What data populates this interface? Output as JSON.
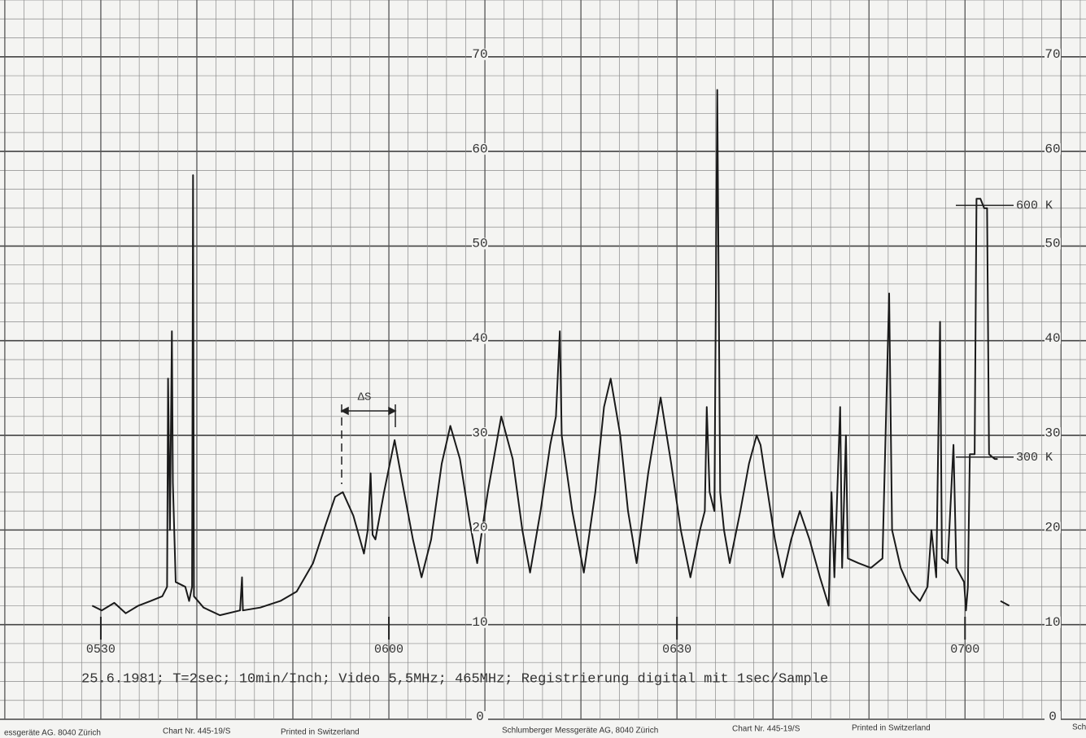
{
  "chart_data": {
    "type": "line",
    "caption": "25.6.1981; T=2sec; 10min/Inch; Video 5,5MHz; 465MHz; Registrierung digital mit 1sec/Sample",
    "footer": [
      "essgeräte AG. 8040 Zürich",
      "Chart Nr. 445-19/S",
      "Printed in Switzerland",
      "Schlumberger Messgeräte AG, 8040 Zürich",
      "Chart Nr. 445-19/S",
      "Printed in Switzerland",
      "Sch"
    ],
    "delta_label": "ΔS",
    "annotations": [
      {
        "text": "600 K",
        "y": 54.3
      },
      {
        "text": "300 K",
        "y": 27.7
      }
    ],
    "xlim": [
      319.5,
      432.6
    ],
    "ylim": [
      0,
      76
    ],
    "xticks": [
      {
        "value": 330,
        "label": "0530"
      },
      {
        "value": 360,
        "label": "0600"
      },
      {
        "value": 390,
        "label": "0630"
      },
      {
        "value": 420,
        "label": "0700"
      }
    ],
    "yticks": [
      0,
      10,
      20,
      30,
      40,
      50,
      60,
      70
    ],
    "grid": true,
    "series": [
      {
        "color": "#1a1a1a",
        "x": [
          329.1,
          330.1,
          331.4,
          332.6,
          333.9,
          335.2,
          336.4,
          336.9,
          337.0,
          337.2,
          337.4,
          337.5,
          337.8,
          338.8,
          339.2,
          339.5,
          339.6,
          339.7,
          340.7,
          342.4,
          344.5,
          344.7,
          344.8,
          346.6,
          348.7,
          350.4,
          352.1,
          353.4,
          354.4,
          355.2,
          356.3,
          357.4,
          357.8,
          358.1,
          358.3,
          358.6,
          359.5,
          360.6,
          361.4,
          362.5,
          363.4,
          364.4,
          365.5,
          366.4,
          367.4,
          368.4,
          369.2,
          370.3,
          371.7,
          372.9,
          373.9,
          374.7,
          375.8,
          376.8,
          377.4,
          377.8,
          378.0,
          379.1,
          380.3,
          381.5,
          382.4,
          383.1,
          384.1,
          384.9,
          385.8,
          387.0,
          388.3,
          389.4,
          390.4,
          391.4,
          392.4,
          392.9,
          393.1,
          393.4,
          393.9,
          394.2,
          394.5,
          394.9,
          395.5,
          396.6,
          397.5,
          398.3,
          398.7,
          399.3,
          400.2,
          401.0,
          401.9,
          402.8,
          403.8,
          404.9,
          405.8,
          406.1,
          406.4,
          407.0,
          407.2,
          407.6,
          407.8,
          408.9,
          410.2,
          411.4,
          412.1,
          412.4,
          413.3,
          414.4,
          415.3,
          416.1,
          416.5,
          417.0,
          417.4,
          417.6,
          418.2,
          418.8,
          419.1,
          419.9,
          420.1,
          420.3,
          420.5,
          421.0,
          421.2,
          421.6,
          422.0,
          422.3,
          422.5,
          423.1,
          423.4,
          423.5,
          423.7,
          424.6
        ],
        "values": [
          12.0,
          11.5,
          12.3,
          11.2,
          12.0,
          12.5,
          13.0,
          14.0,
          36,
          20,
          41,
          25,
          14.5,
          14.0,
          12.5,
          14,
          57.5,
          13,
          11.8,
          11.0,
          11.5,
          15,
          11.5,
          11.8,
          12.5,
          13.5,
          16.5,
          20.5,
          23.5,
          24,
          21.5,
          17.5,
          20,
          26,
          19.5,
          19,
          24,
          29.5,
          25,
          19,
          15,
          19,
          27,
          31,
          27.5,
          21,
          16.5,
          24,
          32,
          27.5,
          20,
          15.5,
          22,
          29,
          32,
          41,
          30,
          22,
          15.5,
          24,
          33,
          36,
          30,
          22,
          16.5,
          26,
          34,
          27,
          20,
          15,
          20,
          22,
          33,
          24,
          22,
          66.5,
          24,
          20,
          16.5,
          22,
          27,
          30,
          29,
          25,
          19,
          15,
          19,
          22,
          19,
          15,
          12,
          24,
          15,
          33,
          16,
          30,
          17,
          16.5,
          16,
          17,
          45,
          20,
          16,
          13.5,
          12.5,
          14,
          20,
          15,
          42,
          17,
          16.5,
          29,
          16,
          14.5,
          11.5,
          14,
          28,
          28,
          55,
          55,
          54,
          54,
          28,
          27.5,
          27.5,
          null,
          12.5,
          12
        ]
      }
    ]
  }
}
